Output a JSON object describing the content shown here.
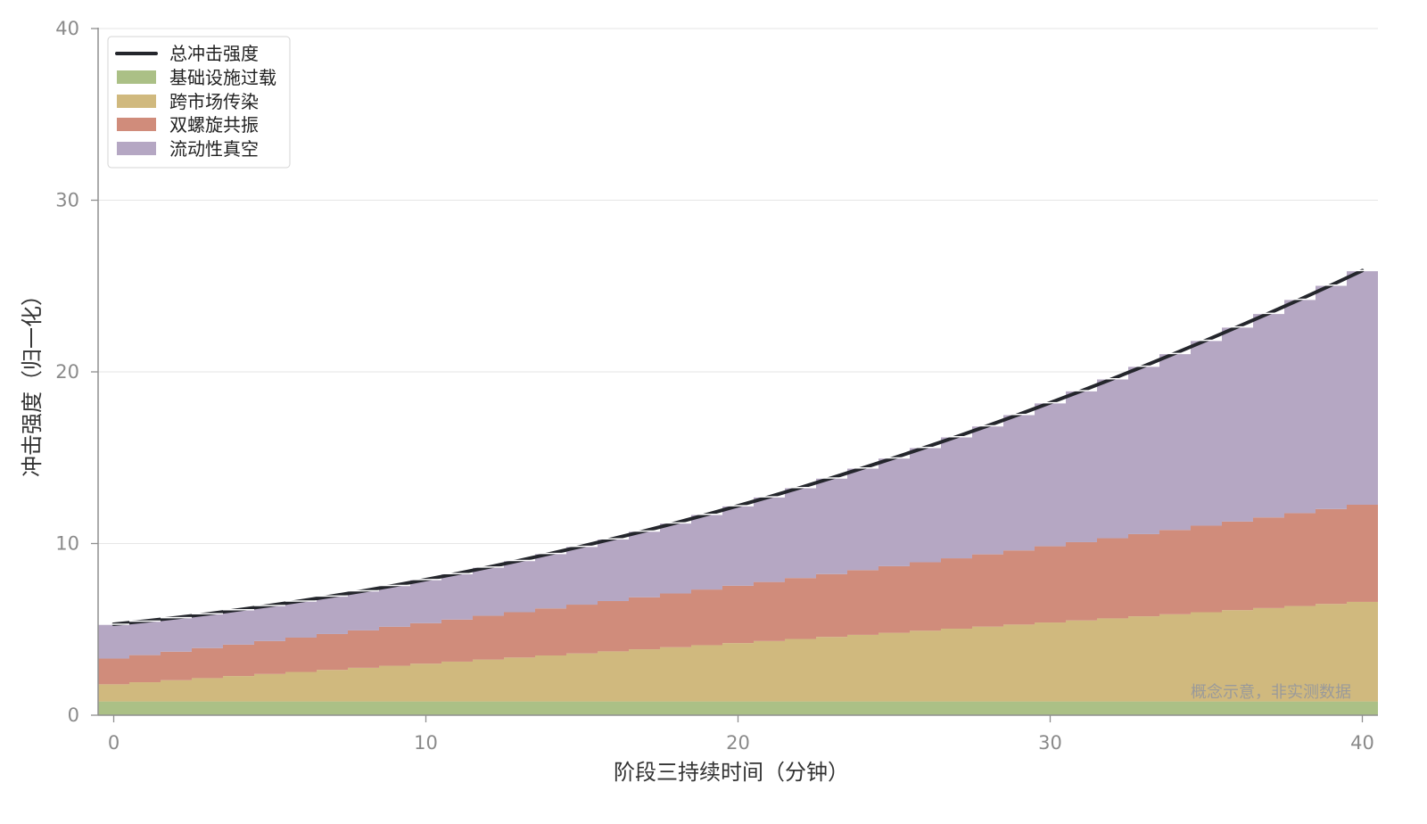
{
  "chart_data": {
    "type": "area",
    "stacked": true,
    "step": true,
    "xlabel": "阶段三持续时间（分钟）",
    "ylabel": "冲击强度（归一化）",
    "xlim": [
      -0.5,
      40.5
    ],
    "ylim": [
      0,
      40
    ],
    "xticks": [
      0,
      10,
      20,
      30,
      40
    ],
    "yticks": [
      0,
      10,
      20,
      30,
      40
    ],
    "grid_y": true,
    "grid_x": false,
    "legend": "top-left",
    "annotation": "概念示意，非实测数据",
    "x": [
      0,
      1,
      2,
      3,
      4,
      5,
      6,
      7,
      8,
      9,
      10,
      11,
      12,
      13,
      14,
      15,
      16,
      17,
      18,
      19,
      20,
      21,
      22,
      23,
      24,
      25,
      26,
      27,
      28,
      29,
      30,
      31,
      32,
      33,
      34,
      35,
      36,
      37,
      38,
      39,
      40
    ],
    "series": [
      {
        "name": "基础设施过载",
        "color": "#abc086",
        "values": [
          0.8,
          0.8,
          0.8,
          0.8,
          0.8,
          0.8,
          0.8,
          0.8,
          0.8,
          0.8,
          0.8,
          0.8,
          0.8,
          0.8,
          0.8,
          0.8,
          0.8,
          0.8,
          0.8,
          0.8,
          0.8,
          0.8,
          0.8,
          0.8,
          0.8,
          0.8,
          0.8,
          0.8,
          0.8,
          0.8,
          0.8,
          0.8,
          0.8,
          0.8,
          0.8,
          0.8,
          0.8,
          0.8,
          0.8,
          0.8,
          0.8
        ]
      },
      {
        "name": "跨市场传染",
        "color": "#d0b97e",
        "values": [
          1.0,
          1.12,
          1.24,
          1.36,
          1.48,
          1.6,
          1.72,
          1.84,
          1.96,
          2.08,
          2.2,
          2.32,
          2.44,
          2.56,
          2.68,
          2.8,
          2.92,
          3.04,
          3.16,
          3.28,
          3.4,
          3.52,
          3.64,
          3.76,
          3.88,
          4.0,
          4.12,
          4.24,
          4.36,
          4.48,
          4.6,
          4.72,
          4.84,
          4.96,
          5.08,
          5.2,
          5.32,
          5.44,
          5.56,
          5.68,
          5.8
        ]
      },
      {
        "name": "双螺旋共振",
        "color": "#d08c7b",
        "values": [
          1.5,
          1.58,
          1.66,
          1.75,
          1.83,
          1.92,
          2.0,
          2.09,
          2.18,
          2.27,
          2.36,
          2.45,
          2.55,
          2.64,
          2.74,
          2.84,
          2.93,
          3.03,
          3.13,
          3.24,
          3.34,
          3.44,
          3.55,
          3.66,
          3.77,
          3.88,
          3.99,
          4.1,
          4.21,
          4.32,
          4.44,
          4.56,
          4.67,
          4.79,
          4.91,
          5.04,
          5.16,
          5.28,
          5.41,
          5.53,
          5.66
        ]
      },
      {
        "name": "流动性真空",
        "color": "#b5a7c3",
        "values": [
          2.0,
          1.98,
          1.98,
          2.0,
          2.03,
          2.07,
          2.13,
          2.21,
          2.31,
          2.41,
          2.54,
          2.68,
          2.84,
          3.01,
          3.2,
          3.4,
          3.62,
          3.86,
          4.11,
          4.38,
          4.66,
          4.96,
          5.27,
          5.6,
          5.95,
          6.31,
          6.69,
          7.08,
          7.49,
          7.92,
          8.36,
          8.82,
          9.29,
          9.78,
          10.28,
          10.8,
          11.34,
          11.89,
          12.46,
          13.04,
          13.64
        ]
      }
    ],
    "total": {
      "name": "总冲击强度",
      "color": "#24262c",
      "values": [
        5.3,
        5.48,
        5.68,
        5.9,
        6.14,
        6.39,
        6.66,
        6.94,
        7.24,
        7.56,
        7.9,
        8.25,
        8.62,
        9.01,
        9.42,
        9.84,
        10.28,
        10.73,
        11.2,
        11.69,
        12.2,
        12.72,
        13.26,
        13.82,
        14.4,
        14.99,
        15.6,
        16.22,
        16.86,
        17.52,
        18.2,
        18.89,
        19.6,
        20.33,
        21.08,
        21.84,
        22.62,
        23.41,
        24.22,
        25.05,
        25.9
      ]
    }
  }
}
